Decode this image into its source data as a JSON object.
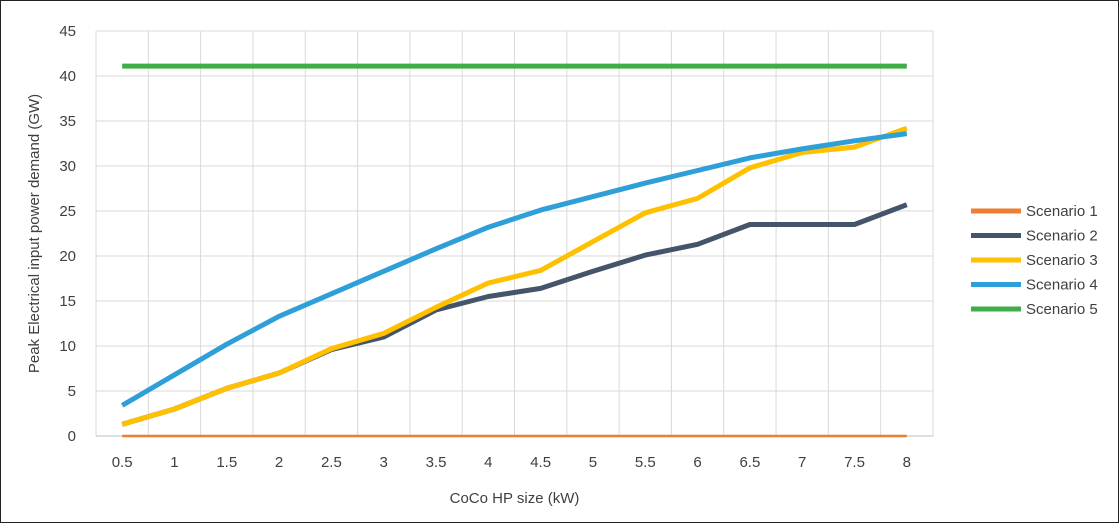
{
  "chart_data": {
    "type": "line",
    "title": "",
    "xlabel": "CoCo HP size (kW)",
    "ylabel": "Peak Electrical input power demand (GW)",
    "categories": [
      "0.5",
      "1",
      "1.5",
      "2",
      "2.5",
      "3",
      "3.5",
      "4",
      "4.5",
      "5",
      "5.5",
      "6",
      "6.5",
      "7",
      "7.5",
      "8"
    ],
    "ylim": [
      0,
      45
    ],
    "yticks": [
      "0",
      "5",
      "10",
      "15",
      "20",
      "25",
      "30",
      "35",
      "40",
      "45"
    ],
    "grid": true,
    "legend_position": "right",
    "series": [
      {
        "name": "Scenario 1",
        "color": "#ED7D31",
        "values": [
          0,
          0,
          0,
          0,
          0,
          0,
          0,
          0,
          0,
          0,
          0,
          0,
          0,
          0,
          0,
          0
        ]
      },
      {
        "name": "Scenario 2",
        "color": "#44546A",
        "values": [
          1.3,
          3.0,
          5.3,
          7.0,
          9.6,
          11.0,
          14.0,
          15.5,
          16.4,
          18.3,
          20.1,
          21.3,
          23.5,
          23.5,
          23.5,
          25.7
        ]
      },
      {
        "name": "Scenario 3",
        "color": "#FFC000",
        "values": [
          1.3,
          3.0,
          5.3,
          7.0,
          9.7,
          11.4,
          14.3,
          17.0,
          18.4,
          21.6,
          24.8,
          26.4,
          29.8,
          31.5,
          32.1,
          34.2
        ]
      },
      {
        "name": "Scenario 4",
        "color": "#2E9FD8",
        "values": [
          3.4,
          6.8,
          10.2,
          13.3,
          15.8,
          18.3,
          20.8,
          23.2,
          25.1,
          26.6,
          28.1,
          29.5,
          30.9,
          31.9,
          32.8,
          33.6
        ]
      },
      {
        "name": "Scenario 5",
        "color": "#3FAE49",
        "values": [
          41.1,
          41.1,
          41.1,
          41.1,
          41.1,
          41.1,
          41.1,
          41.1,
          41.1,
          41.1,
          41.1,
          41.1,
          41.1,
          41.1,
          41.1,
          41.1
        ]
      }
    ]
  }
}
